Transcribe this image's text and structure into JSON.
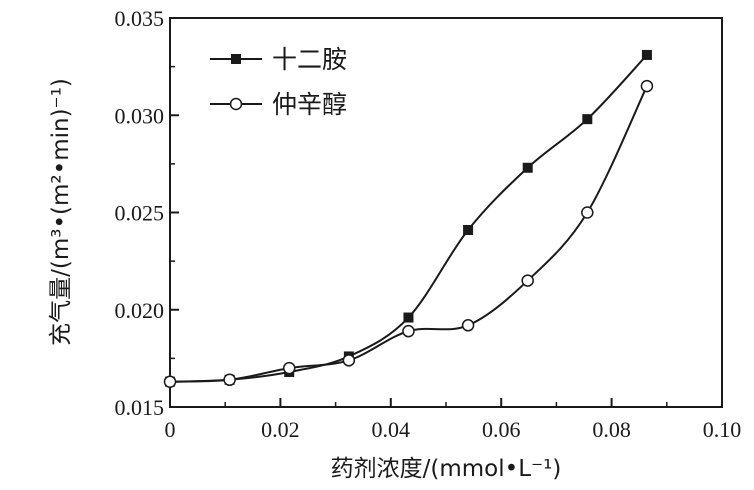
{
  "chart_data": {
    "type": "line",
    "xlabel": "药剂浓度/(mmol•L⁻¹)",
    "ylabel": "充气量/(m³•(m²•min)⁻¹)",
    "xlim": [
      0,
      0.1
    ],
    "ylim": [
      0.015,
      0.035
    ],
    "xticks": [
      0,
      0.02,
      0.04,
      0.06,
      0.08,
      0.1
    ],
    "xtick_labels": [
      "0",
      "0.02",
      "0.04",
      "0.06",
      "0.08",
      "0.10"
    ],
    "yticks": [
      0.015,
      0.02,
      0.025,
      0.03,
      0.035
    ],
    "ytick_labels": [
      "0.015",
      "0.020",
      "0.025",
      "0.030",
      "0.035"
    ],
    "legend_position": "top-left",
    "grid": false,
    "series": [
      {
        "name": "十二胺",
        "marker": "filled-square",
        "color": "#1a1a1a",
        "x": [
          0,
          0.0108,
          0.0216,
          0.0324,
          0.0432,
          0.054,
          0.0648,
          0.0756,
          0.0864
        ],
        "y": [
          0.0163,
          0.0164,
          0.0168,
          0.0176,
          0.0196,
          0.0241,
          0.0273,
          0.0298,
          0.0331
        ]
      },
      {
        "name": "仲辛醇",
        "marker": "open-circle",
        "color": "#1a1a1a",
        "x": [
          0,
          0.0108,
          0.0216,
          0.0324,
          0.0432,
          0.054,
          0.0648,
          0.0756,
          0.0864
        ],
        "y": [
          0.0163,
          0.0164,
          0.017,
          0.0174,
          0.0189,
          0.0192,
          0.0215,
          0.025,
          0.0315
        ]
      }
    ]
  }
}
